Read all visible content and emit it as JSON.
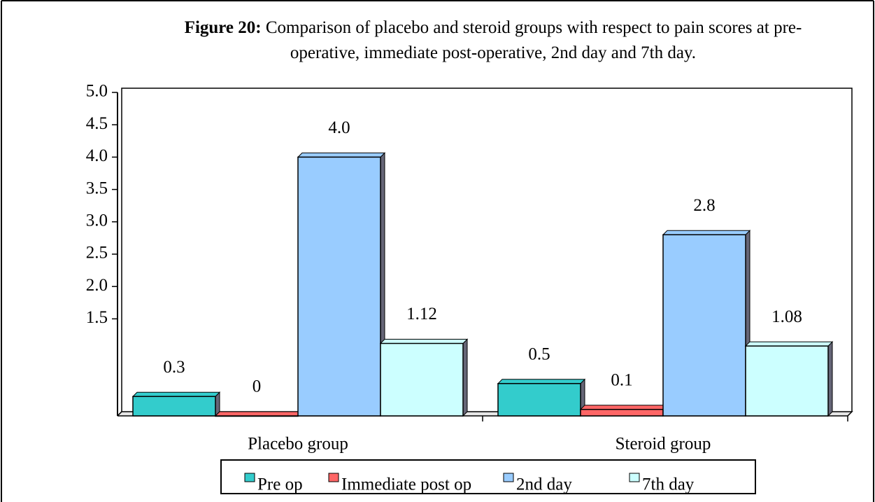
{
  "chart_data": {
    "type": "bar",
    "title_label": "Figure 20:",
    "title": "Comparison of placebo and steroid groups with respect to pain scores at pre-operative, immediate post-operative, 2nd day and 7th day.",
    "categories": [
      "Placebo group",
      "Steroid group"
    ],
    "series": [
      {
        "name": "Pre op",
        "color": "#33cccc",
        "values": [
          0.3,
          0.5
        ]
      },
      {
        "name": "Immediate post op",
        "color": "#ff6666",
        "values": [
          0.0,
          0.1
        ]
      },
      {
        "name": "2nd day",
        "color": "#99ccff",
        "values": [
          4.0,
          2.8
        ],
        "value_labels": [
          "4.0",
          "2.8"
        ]
      },
      {
        "name": "7th day",
        "color": "#ccffff",
        "values": [
          1.12,
          1.08
        ]
      }
    ],
    "ylim": [
      0,
      5
    ],
    "yticks": [
      {
        "value": 5,
        "label": "5.0"
      },
      {
        "value": 4.5,
        "label": "4.5"
      },
      {
        "value": 4,
        "label": "4.0"
      },
      {
        "value": 3.5,
        "label": "3.5"
      },
      {
        "value": 3,
        "label": "3.0"
      },
      {
        "value": 2.5,
        "label": "2.5"
      },
      {
        "value": 2,
        "label": "2.0"
      },
      {
        "value": 1.5,
        "label": "1.5"
      }
    ],
    "legend": "bottom"
  }
}
